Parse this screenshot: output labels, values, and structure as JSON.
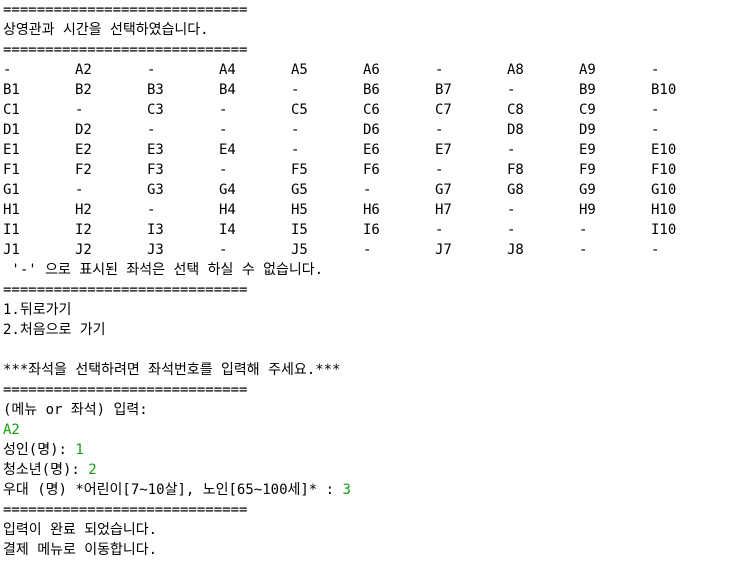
{
  "separator": "=============================",
  "header_message": "상영관과 시간을 선택하였습니다.",
  "seat_grid": [
    [
      "-",
      "A2",
      "-",
      "A4",
      "A5",
      "A6",
      "-",
      "A8",
      "A9",
      "-"
    ],
    [
      "B1",
      "B2",
      "B3",
      "B4",
      "-",
      "B6",
      "B7",
      "-",
      "B9",
      "B10"
    ],
    [
      "C1",
      "-",
      "C3",
      "-",
      "C5",
      "C6",
      "C7",
      "C8",
      "C9",
      "-"
    ],
    [
      "D1",
      "D2",
      "-",
      "-",
      "-",
      "D6",
      "-",
      "D8",
      "D9",
      "-"
    ],
    [
      "E1",
      "E2",
      "E3",
      "E4",
      "-",
      "E6",
      "E7",
      "-",
      "E9",
      "E10"
    ],
    [
      "F1",
      "F2",
      "F3",
      "-",
      "F5",
      "F6",
      "-",
      "F8",
      "F9",
      "F10"
    ],
    [
      "G1",
      "-",
      "G3",
      "G4",
      "G5",
      "-",
      "G7",
      "G8",
      "G9",
      "G10"
    ],
    [
      "H1",
      "H2",
      "-",
      "H4",
      "H5",
      "H6",
      "H7",
      "-",
      "H9",
      "H10"
    ],
    [
      "I1",
      "I2",
      "I3",
      "I4",
      "I5",
      "I6",
      "-",
      "-",
      "-",
      "I10"
    ],
    [
      "J1",
      "J2",
      "J3",
      "-",
      "J5",
      "-",
      "J7",
      "J8",
      "-",
      "-"
    ]
  ],
  "unavailable_note": " '-' 으로 표시된 좌석은 선택 하실 수 없습니다.",
  "menu": {
    "back": "1.뒤로가기",
    "home": "2.처음으로 가기"
  },
  "instruction": "***좌석을 선택하려면 좌석번호를 입력해 주세요.***",
  "prompt": {
    "label": "(메뉴 or 좌석) 입력:",
    "input_value": "A2"
  },
  "adult": {
    "label": "성인(명): ",
    "value": "1"
  },
  "youth": {
    "label": "청소년(명): ",
    "value": "2"
  },
  "discount": {
    "label": "우대 (명) *어린이[7~10살], 노인[65~100세]* : ",
    "value": "3"
  },
  "complete_message": "입력이 완료 되었습니다.",
  "payment_message": "결제 메뉴로 이동합니다.",
  "colors": {
    "input_text": "#13a10e",
    "text": "#000000",
    "background": "#ffffff"
  }
}
